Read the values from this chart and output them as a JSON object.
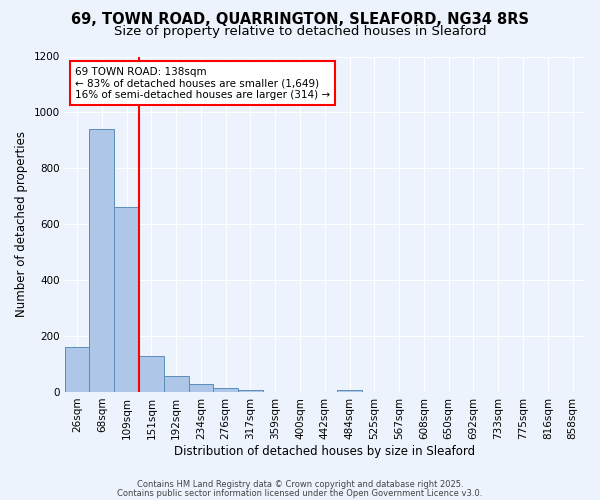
{
  "title1": "69, TOWN ROAD, QUARRINGTON, SLEAFORD, NG34 8RS",
  "title2": "Size of property relative to detached houses in Sleaford",
  "xlabel": "Distribution of detached houses by size in Sleaford",
  "ylabel": "Number of detached properties",
  "categories": [
    "26sqm",
    "68sqm",
    "109sqm",
    "151sqm",
    "192sqm",
    "234sqm",
    "276sqm",
    "317sqm",
    "359sqm",
    "400sqm",
    "442sqm",
    "484sqm",
    "525sqm",
    "567sqm",
    "608sqm",
    "650sqm",
    "692sqm",
    "733sqm",
    "775sqm",
    "816sqm",
    "858sqm"
  ],
  "values": [
    160,
    940,
    660,
    130,
    58,
    30,
    13,
    8,
    0,
    0,
    0,
    8,
    0,
    0,
    0,
    0,
    0,
    0,
    0,
    0,
    0
  ],
  "bar_color": "#aec6e8",
  "bar_edge_color": "#5b8db8",
  "red_line_x": 2.5,
  "annotation_text": "69 TOWN ROAD: 138sqm\n← 83% of detached houses are smaller (1,649)\n16% of semi-detached houses are larger (314) →",
  "annotation_box_color": "white",
  "annotation_box_edge_color": "red",
  "ylim": [
    0,
    1200
  ],
  "yticks": [
    0,
    200,
    400,
    600,
    800,
    1000,
    1200
  ],
  "background_color": "#edf3fc",
  "grid_color": "#ffffff",
  "footer1": "Contains HM Land Registry data © Crown copyright and database right 2025.",
  "footer2": "Contains public sector information licensed under the Open Government Licence v3.0.",
  "title1_fontsize": 10.5,
  "title2_fontsize": 9.5,
  "axis_label_fontsize": 8.5,
  "tick_fontsize": 7.5,
  "annotation_fontsize": 7.5,
  "footer_fontsize": 6.0
}
